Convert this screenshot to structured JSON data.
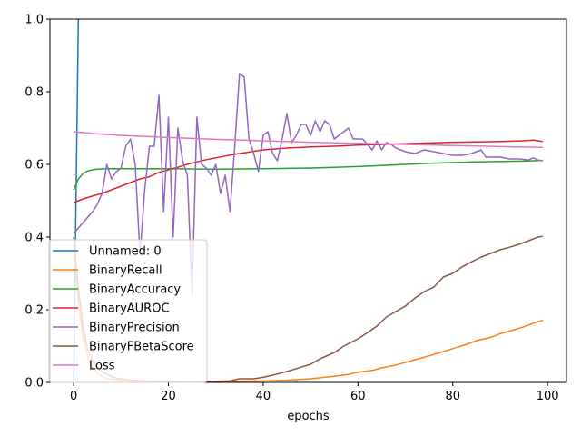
{
  "chart_data": {
    "type": "line",
    "title": "",
    "xlabel": "epochs",
    "ylabel": "",
    "xlim": [
      -5,
      104
    ],
    "ylim": [
      0,
      1
    ],
    "xticks": [
      0,
      20,
      40,
      60,
      80,
      100
    ],
    "yticks": [
      0.0,
      0.2,
      0.4,
      0.6,
      0.8,
      1.0
    ],
    "xtick_labels": [
      "0",
      "20",
      "40",
      "60",
      "80",
      "100"
    ],
    "ytick_labels": [
      "0.0",
      "0.2",
      "0.4",
      "0.6",
      "0.8",
      "1.0"
    ],
    "grid": false,
    "legend_position": "lower-left",
    "series": [
      {
        "name": "Unnamed: 0",
        "color": "#1f77b4",
        "points": [
          [
            0,
            0.0
          ],
          [
            1,
            1.0
          ],
          [
            2,
            2.0
          ]
        ]
      },
      {
        "name": "BinaryRecall",
        "color": "#ff7f0e",
        "points": [
          [
            0,
            0.38
          ],
          [
            1,
            0.22
          ],
          [
            2,
            0.12
          ],
          [
            3,
            0.07
          ],
          [
            4,
            0.04
          ],
          [
            5,
            0.025
          ],
          [
            6,
            0.017
          ],
          [
            7,
            0.012
          ],
          [
            8,
            0.009
          ],
          [
            9,
            0.007
          ],
          [
            10,
            0.005
          ],
          [
            12,
            0.004
          ],
          [
            15,
            0.003
          ],
          [
            20,
            0.002
          ],
          [
            25,
            0.002
          ],
          [
            30,
            0.002
          ],
          [
            35,
            0.003
          ],
          [
            40,
            0.004
          ],
          [
            45,
            0.006
          ],
          [
            50,
            0.01
          ],
          [
            55,
            0.017
          ],
          [
            58,
            0.022
          ],
          [
            60,
            0.028
          ],
          [
            63,
            0.033
          ],
          [
            65,
            0.04
          ],
          [
            68,
            0.048
          ],
          [
            70,
            0.055
          ],
          [
            73,
            0.066
          ],
          [
            75,
            0.073
          ],
          [
            78,
            0.085
          ],
          [
            80,
            0.093
          ],
          [
            83,
            0.105
          ],
          [
            85,
            0.115
          ],
          [
            88,
            0.124
          ],
          [
            90,
            0.134
          ],
          [
            93,
            0.145
          ],
          [
            95,
            0.153
          ],
          [
            97,
            0.163
          ],
          [
            99,
            0.171
          ]
        ]
      },
      {
        "name": "BinaryAccuracy",
        "color": "#2ca02c",
        "points": [
          [
            0,
            0.53
          ],
          [
            1,
            0.56
          ],
          [
            2,
            0.575
          ],
          [
            3,
            0.582
          ],
          [
            4,
            0.585
          ],
          [
            5,
            0.587
          ],
          [
            7,
            0.588
          ],
          [
            10,
            0.588
          ],
          [
            20,
            0.588
          ],
          [
            30,
            0.587
          ],
          [
            40,
            0.588
          ],
          [
            45,
            0.589
          ],
          [
            50,
            0.59
          ],
          [
            55,
            0.592
          ],
          [
            60,
            0.594
          ],
          [
            65,
            0.597
          ],
          [
            70,
            0.6
          ],
          [
            75,
            0.603
          ],
          [
            80,
            0.605
          ],
          [
            85,
            0.607
          ],
          [
            90,
            0.608
          ],
          [
            95,
            0.609
          ],
          [
            99,
            0.611
          ]
        ]
      },
      {
        "name": "BinaryAUROC",
        "color": "#d62728",
        "points": [
          [
            0,
            0.495
          ],
          [
            2,
            0.505
          ],
          [
            4,
            0.513
          ],
          [
            6,
            0.52
          ],
          [
            8,
            0.53
          ],
          [
            10,
            0.54
          ],
          [
            12,
            0.55
          ],
          [
            14,
            0.56
          ],
          [
            16,
            0.566
          ],
          [
            18,
            0.578
          ],
          [
            20,
            0.585
          ],
          [
            22,
            0.592
          ],
          [
            24,
            0.6
          ],
          [
            26,
            0.607
          ],
          [
            28,
            0.613
          ],
          [
            30,
            0.618
          ],
          [
            32,
            0.623
          ],
          [
            34,
            0.628
          ],
          [
            36,
            0.632
          ],
          [
            38,
            0.636
          ],
          [
            40,
            0.64
          ],
          [
            45,
            0.645
          ],
          [
            50,
            0.648
          ],
          [
            55,
            0.65
          ],
          [
            60,
            0.653
          ],
          [
            65,
            0.655
          ],
          [
            70,
            0.657
          ],
          [
            75,
            0.659
          ],
          [
            80,
            0.661
          ],
          [
            85,
            0.662
          ],
          [
            90,
            0.663
          ],
          [
            95,
            0.665
          ],
          [
            97,
            0.667
          ],
          [
            99,
            0.663
          ]
        ]
      },
      {
        "name": "BinaryPrecision",
        "color": "#9467bd",
        "points": [
          [
            0,
            0.41
          ],
          [
            1,
            0.425
          ],
          [
            2,
            0.44
          ],
          [
            3,
            0.455
          ],
          [
            4,
            0.47
          ],
          [
            5,
            0.49
          ],
          [
            6,
            0.52
          ],
          [
            7,
            0.6
          ],
          [
            8,
            0.56
          ],
          [
            9,
            0.58
          ],
          [
            10,
            0.59
          ],
          [
            11,
            0.65
          ],
          [
            12,
            0.67
          ],
          [
            13,
            0.6
          ],
          [
            14,
            0.35
          ],
          [
            15,
            0.53
          ],
          [
            16,
            0.65
          ],
          [
            17,
            0.65
          ],
          [
            18,
            0.79
          ],
          [
            19,
            0.47
          ],
          [
            20,
            0.73
          ],
          [
            21,
            0.4
          ],
          [
            22,
            0.7
          ],
          [
            23,
            0.61
          ],
          [
            24,
            0.57
          ],
          [
            25,
            0.24
          ],
          [
            26,
            0.73
          ],
          [
            27,
            0.6
          ],
          [
            28,
            0.59
          ],
          [
            29,
            0.57
          ],
          [
            30,
            0.6
          ],
          [
            31,
            0.52
          ],
          [
            32,
            0.57
          ],
          [
            33,
            0.47
          ],
          [
            34,
            0.65
          ],
          [
            35,
            0.85
          ],
          [
            36,
            0.84
          ],
          [
            37,
            0.67
          ],
          [
            38,
            0.63
          ],
          [
            39,
            0.58
          ],
          [
            40,
            0.68
          ],
          [
            41,
            0.69
          ],
          [
            42,
            0.63
          ],
          [
            43,
            0.61
          ],
          [
            44,
            0.67
          ],
          [
            45,
            0.74
          ],
          [
            46,
            0.66
          ],
          [
            47,
            0.68
          ],
          [
            48,
            0.71
          ],
          [
            49,
            0.71
          ],
          [
            50,
            0.68
          ],
          [
            51,
            0.72
          ],
          [
            52,
            0.69
          ],
          [
            53,
            0.72
          ],
          [
            54,
            0.71
          ],
          [
            55,
            0.67
          ],
          [
            56,
            0.68
          ],
          [
            57,
            0.69
          ],
          [
            58,
            0.7
          ],
          [
            59,
            0.67
          ],
          [
            60,
            0.67
          ],
          [
            61,
            0.67
          ],
          [
            62,
            0.655
          ],
          [
            63,
            0.64
          ],
          [
            64,
            0.665
          ],
          [
            65,
            0.64
          ],
          [
            66,
            0.66
          ],
          [
            67,
            0.655
          ],
          [
            68,
            0.645
          ],
          [
            70,
            0.635
          ],
          [
            72,
            0.63
          ],
          [
            74,
            0.64
          ],
          [
            76,
            0.635
          ],
          [
            78,
            0.63
          ],
          [
            80,
            0.625
          ],
          [
            82,
            0.625
          ],
          [
            84,
            0.63
          ],
          [
            86,
            0.64
          ],
          [
            87,
            0.62
          ],
          [
            90,
            0.62
          ],
          [
            92,
            0.615
          ],
          [
            94,
            0.615
          ],
          [
            96,
            0.612
          ],
          [
            97,
            0.618
          ],
          [
            98,
            0.612
          ],
          [
            99,
            0.61
          ]
        ]
      },
      {
        "name": "BinaryFBetaScore",
        "color": "#8c564b",
        "points": [
          [
            0,
            0.4
          ],
          [
            1,
            0.26
          ],
          [
            2,
            0.15
          ],
          [
            3,
            0.09
          ],
          [
            4,
            0.06
          ],
          [
            5,
            0.04
          ],
          [
            6,
            0.03
          ],
          [
            7,
            0.022
          ],
          [
            8,
            0.016
          ],
          [
            9,
            0.012
          ],
          [
            10,
            0.01
          ],
          [
            12,
            0.007
          ],
          [
            15,
            0.004
          ],
          [
            20,
            0.003
          ],
          [
            25,
            0.002
          ],
          [
            30,
            0.003
          ],
          [
            33,
            0.004
          ],
          [
            35,
            0.01
          ],
          [
            38,
            0.01
          ],
          [
            40,
            0.014
          ],
          [
            42,
            0.02
          ],
          [
            45,
            0.03
          ],
          [
            48,
            0.042
          ],
          [
            50,
            0.05
          ],
          [
            52,
            0.065
          ],
          [
            55,
            0.082
          ],
          [
            57,
            0.1
          ],
          [
            60,
            0.12
          ],
          [
            62,
            0.137
          ],
          [
            64,
            0.155
          ],
          [
            66,
            0.18
          ],
          [
            68,
            0.195
          ],
          [
            70,
            0.21
          ],
          [
            72,
            0.232
          ],
          [
            74,
            0.25
          ],
          [
            76,
            0.262
          ],
          [
            78,
            0.29
          ],
          [
            80,
            0.3
          ],
          [
            82,
            0.318
          ],
          [
            84,
            0.332
          ],
          [
            86,
            0.345
          ],
          [
            88,
            0.355
          ],
          [
            90,
            0.365
          ],
          [
            92,
            0.372
          ],
          [
            94,
            0.38
          ],
          [
            96,
            0.39
          ],
          [
            98,
            0.4
          ],
          [
            99,
            0.402
          ]
        ]
      },
      {
        "name": "Loss",
        "color": "#e377c2",
        "points": [
          [
            0,
            0.69
          ],
          [
            5,
            0.684
          ],
          [
            10,
            0.68
          ],
          [
            15,
            0.677
          ],
          [
            20,
            0.674
          ],
          [
            30,
            0.669
          ],
          [
            40,
            0.665
          ],
          [
            50,
            0.661
          ],
          [
            60,
            0.658
          ],
          [
            70,
            0.655
          ],
          [
            80,
            0.652
          ],
          [
            90,
            0.649
          ],
          [
            99,
            0.647
          ]
        ]
      }
    ]
  }
}
